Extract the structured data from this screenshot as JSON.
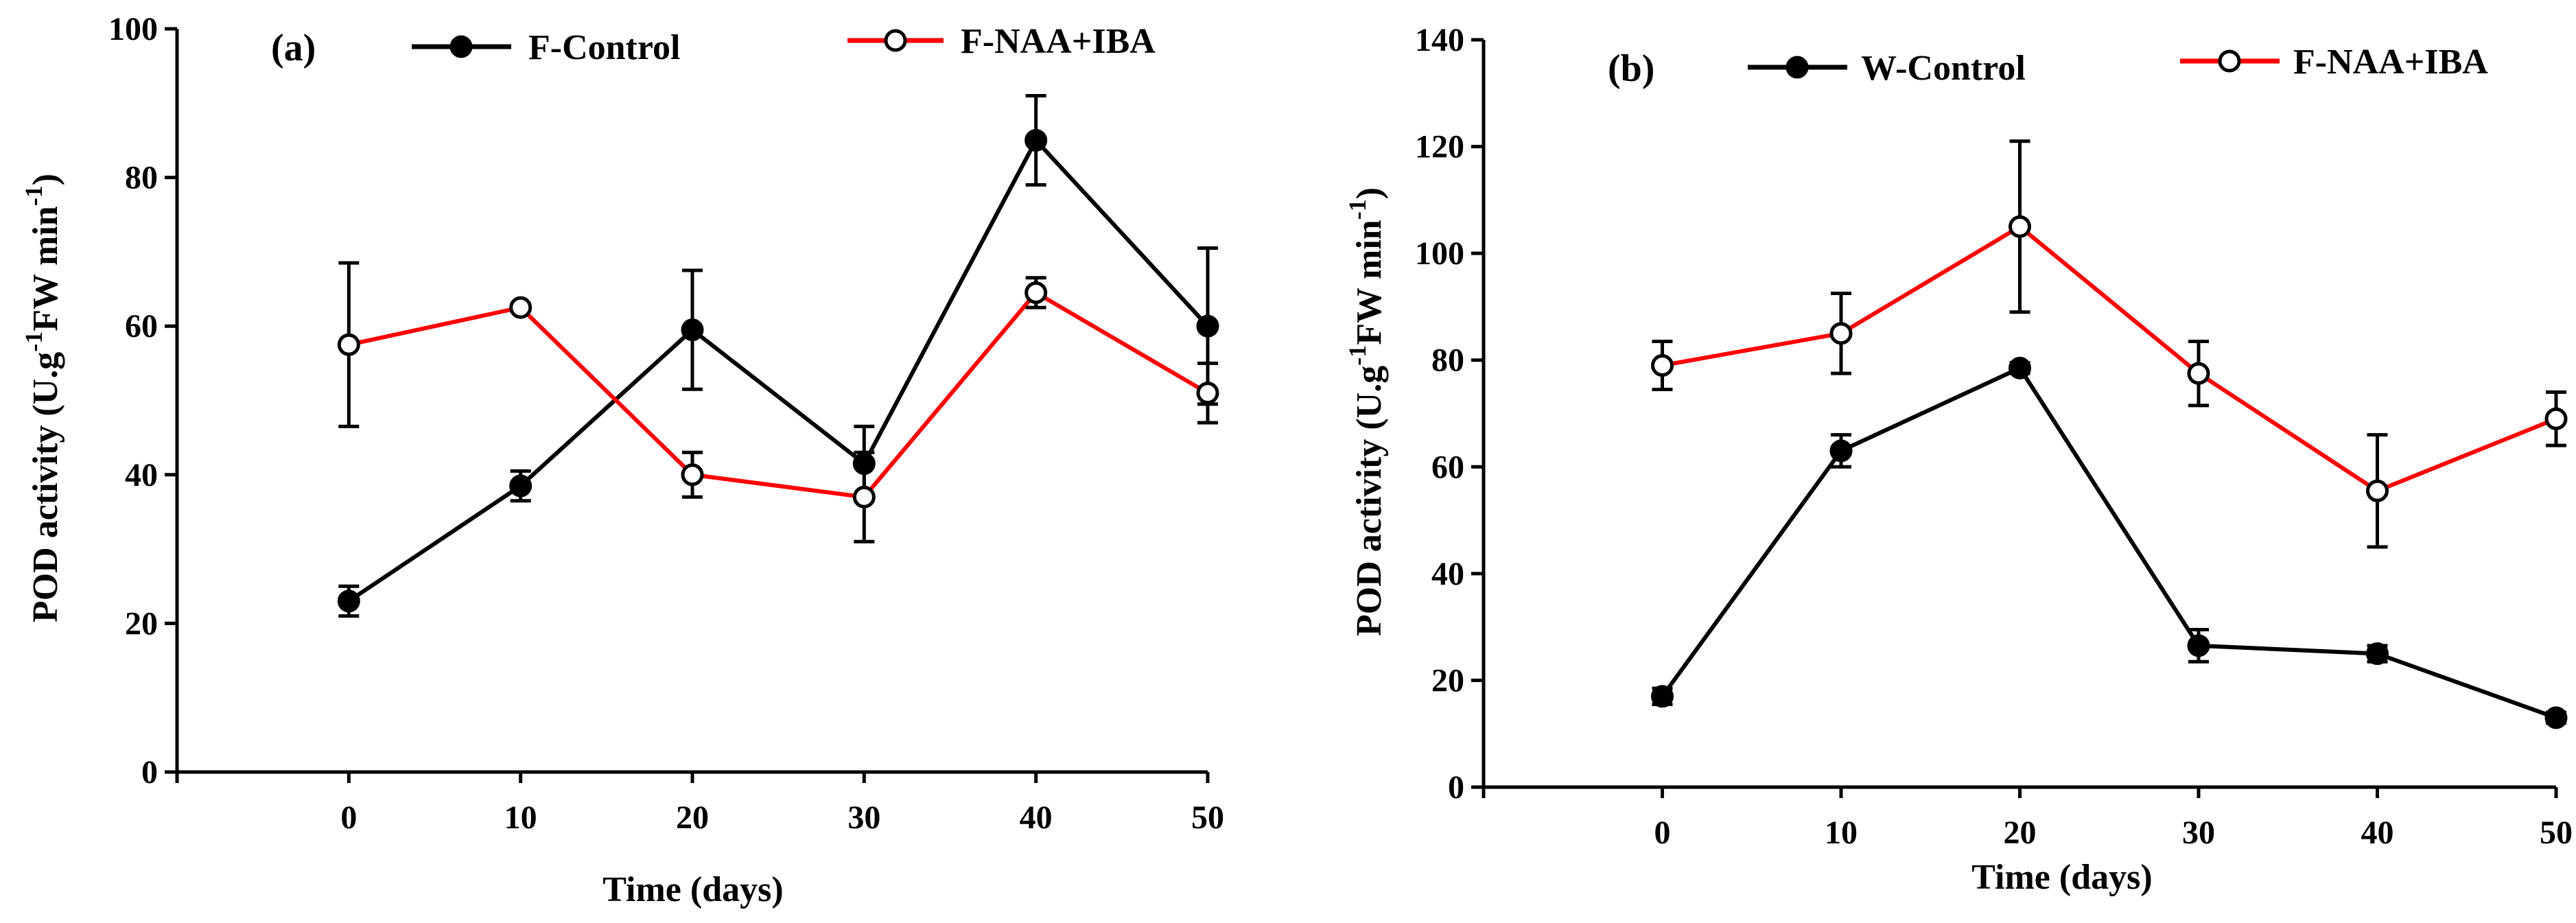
{
  "colors": {
    "control": "#000000",
    "treatment": "#ff0000",
    "axis": "#000000"
  },
  "chart_data": [
    {
      "type": "line",
      "panel_label": "(a)",
      "xlabel": "Time (days)",
      "ylabel": {
        "main": "POD activity (U.g",
        "sup1": "-1",
        "mid": "FW min",
        "sup2": "-1",
        "end": ")"
      },
      "x": [
        0,
        10,
        20,
        30,
        40,
        50
      ],
      "xticks": [
        "0",
        "10",
        "20",
        "30",
        "40",
        "50"
      ],
      "xlim": [
        -10,
        50
      ],
      "ylim": [
        0,
        100
      ],
      "yticks": [
        "0",
        "20",
        "40",
        "60",
        "80",
        "100"
      ],
      "legend_position": "top",
      "series": [
        {
          "name": "F-Control",
          "marker": "filled-circle",
          "color_key": "control",
          "values": [
            23,
            38.5,
            59.5,
            41.5,
            85,
            60
          ],
          "errors": [
            2,
            2,
            8,
            5,
            6,
            10.5
          ]
        },
        {
          "name": "F-NAA+IBA",
          "marker": "open-circle",
          "color_key": "treatment",
          "values": [
            57.5,
            62.5,
            40,
            37,
            64.5,
            51
          ],
          "errors": [
            11,
            0.5,
            3,
            6,
            2,
            4
          ]
        }
      ]
    },
    {
      "type": "line",
      "panel_label": "(b)",
      "xlabel": "Time (days)",
      "ylabel": {
        "main": "POD activity (U.g",
        "sup1": "-1",
        "mid": "FW min",
        "sup2": "-1",
        "end": ")"
      },
      "x": [
        0,
        10,
        20,
        30,
        40,
        50
      ],
      "xticks": [
        "0",
        "10",
        "20",
        "30",
        "40",
        "50"
      ],
      "xlim": [
        -10,
        50
      ],
      "ylim": [
        0,
        140
      ],
      "yticks": [
        "0",
        "20",
        "40",
        "60",
        "80",
        "100",
        "120",
        "140"
      ],
      "legend_position": "top",
      "series": [
        {
          "name": "W-Control",
          "marker": "filled-circle",
          "color_key": "control",
          "values": [
            17,
            63,
            78.5,
            26.5,
            25,
            13
          ],
          "errors": [
            1.5,
            3,
            1,
            3,
            1.5,
            1
          ]
        },
        {
          "name": "F-NAA+IBA",
          "marker": "open-circle",
          "color_key": "treatment",
          "values": [
            79,
            85,
            105,
            77.5,
            55.5,
            69
          ],
          "errors": [
            4.5,
            7.5,
            16,
            6,
            10.5,
            5
          ]
        }
      ]
    }
  ]
}
